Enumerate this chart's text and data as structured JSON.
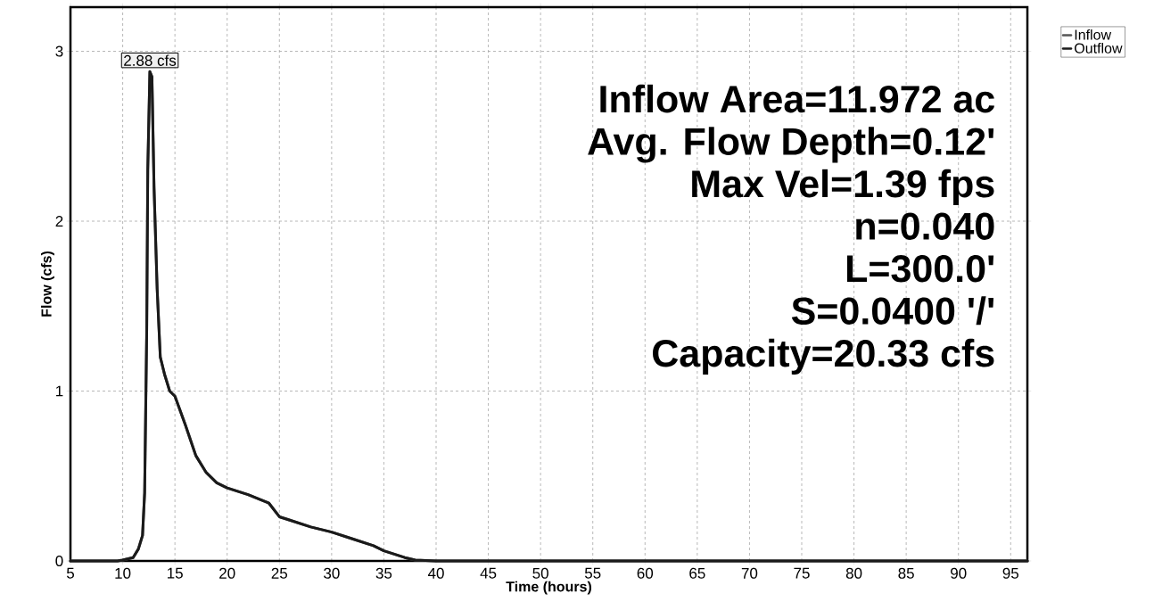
{
  "chart_data": {
    "type": "line",
    "xlabel": "Time  (hours)",
    "ylabel": "Flow  (cfs)",
    "xlim": [
      5,
      96.6
    ],
    "ylim": [
      0,
      3.26
    ],
    "xticks": [
      5,
      10,
      15,
      20,
      25,
      30,
      35,
      40,
      45,
      50,
      55,
      60,
      65,
      70,
      75,
      80,
      85,
      90,
      95
    ],
    "yticks": [
      0,
      1,
      2,
      3
    ],
    "grid": true,
    "legend": "top right",
    "line_style": "solid",
    "marker": "none",
    "series": [
      {
        "name": "Inflow",
        "color": "#555555",
        "x": [
          5,
          9.5,
          10,
          11,
          11.5,
          11.9,
          12.1,
          12.3,
          12.4,
          12.6,
          12.8,
          13.0,
          13.3,
          13.6,
          14,
          14.5,
          15,
          16,
          17,
          18,
          19,
          20,
          22,
          24,
          25,
          26,
          28,
          30,
          32,
          34,
          35,
          37,
          38,
          39,
          40,
          96.6
        ],
        "values": [
          0,
          0,
          0.005,
          0.02,
          0.07,
          0.15,
          0.4,
          1.35,
          2.3,
          2.88,
          2.85,
          2.2,
          1.6,
          1.2,
          1.1,
          1.0,
          0.97,
          0.8,
          0.62,
          0.52,
          0.46,
          0.43,
          0.39,
          0.34,
          0.26,
          0.24,
          0.2,
          0.17,
          0.13,
          0.09,
          0.06,
          0.02,
          0.005,
          0.003,
          0,
          0
        ]
      },
      {
        "name": "Outflow",
        "color": "#1a1a1a",
        "x": [
          5,
          9.5,
          10,
          11,
          11.5,
          11.9,
          12.1,
          12.3,
          12.4,
          12.6,
          12.8,
          13.0,
          13.3,
          13.6,
          14,
          14.5,
          15,
          16,
          17,
          18,
          19,
          20,
          22,
          24,
          25,
          26,
          28,
          30,
          32,
          34,
          35,
          37,
          38,
          39,
          40,
          96.6
        ],
        "values": [
          0,
          0,
          0.005,
          0.02,
          0.07,
          0.15,
          0.4,
          1.35,
          2.3,
          2.88,
          2.85,
          2.2,
          1.6,
          1.2,
          1.1,
          1.0,
          0.97,
          0.8,
          0.62,
          0.52,
          0.46,
          0.43,
          0.39,
          0.34,
          0.26,
          0.24,
          0.2,
          0.17,
          0.13,
          0.09,
          0.06,
          0.02,
          0.005,
          0.003,
          0,
          0
        ]
      }
    ],
    "annotations": [
      {
        "text": "2.88 cfs",
        "x": 12.6,
        "y": 2.88
      },
      "Inflow Area=11.972 ac",
      "Avg. Flow Depth=0.12'",
      "Max Vel=1.39 fps",
      "n=0.040",
      "L=300.0'",
      "S=0.0400 '/'",
      "Capacity=20.33 cfs"
    ]
  }
}
